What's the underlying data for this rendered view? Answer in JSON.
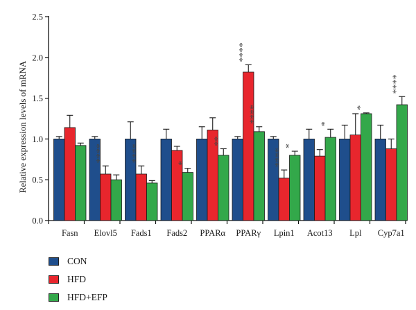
{
  "chart_data": {
    "type": "bar",
    "ylabel": "Relative expression levels of mRNA",
    "xlabel": "",
    "ylim": [
      0,
      2.5
    ],
    "yticks": [
      "0.0",
      "0.5",
      "1.0",
      "1.5",
      "2.0",
      "2.5"
    ],
    "grid": false,
    "legend_position": "bottom-left",
    "categories": [
      "Fasn",
      "Elovl5",
      "Fads1",
      "Fads2",
      "PPARα",
      "PPARγ",
      "Lpin1",
      "Acot13",
      "Lpl",
      "Cyp7a1"
    ],
    "series": [
      {
        "name": "CON",
        "color": "#1f4e8c",
        "values": [
          1.0,
          1.0,
          1.0,
          1.0,
          1.0,
          1.0,
          1.0,
          1.0,
          1.0,
          1.0
        ],
        "errors": [
          0.03,
          0.03,
          0.21,
          0.12,
          0.15,
          0.03,
          0.03,
          0.12,
          0.17,
          0.17
        ],
        "significance": [
          "",
          "",
          "",
          "",
          "",
          "",
          "",
          "",
          "",
          ""
        ]
      },
      {
        "name": "HFD",
        "color": "#e8262d",
        "values": [
          1.14,
          0.57,
          0.57,
          0.86,
          1.11,
          1.82,
          0.52,
          0.79,
          1.05,
          0.88
        ],
        "errors": [
          0.15,
          0.1,
          0.1,
          0.05,
          0.15,
          0.09,
          0.1,
          0.08,
          0.26,
          0.12
        ],
        "significance": [
          "",
          "****",
          "****",
          "",
          "",
          "****",
          "****",
          "",
          "",
          ""
        ]
      },
      {
        "name": "HFD+EFP",
        "color": "#33a84a",
        "values": [
          0.92,
          0.5,
          0.46,
          0.59,
          0.8,
          1.09,
          0.8,
          1.02,
          1.31,
          1.42
        ],
        "errors": [
          0.03,
          0.06,
          0.03,
          0.05,
          0.08,
          0.06,
          0.05,
          0.1,
          0.01,
          0.1
        ],
        "significance": [
          "",
          "",
          "",
          "*",
          "**",
          "****",
          "*",
          "*",
          "*",
          "****"
        ]
      }
    ]
  }
}
